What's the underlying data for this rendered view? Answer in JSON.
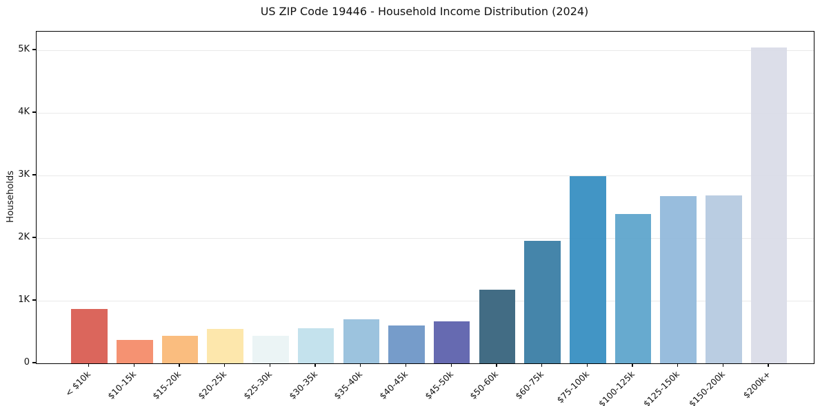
{
  "chart_data": {
    "type": "bar",
    "title": "US ZIP Code 19446 - Household Income Distribution (2024)",
    "xlabel": "",
    "ylabel": "Households",
    "categories": [
      "< $10k",
      "$10-15k",
      "$15-20k",
      "$20-25k",
      "$25-30k",
      "$30-35k",
      "$35-40k",
      "$40-45k",
      "$45-50k",
      "$50-60k",
      "$60-75k",
      "$75-100k",
      "$100-125k",
      "$125-150k",
      "$150-200k",
      "$200k+"
    ],
    "values": [
      870,
      375,
      440,
      550,
      445,
      560,
      700,
      605,
      675,
      1180,
      1960,
      2990,
      2390,
      2670,
      2685,
      5045
    ],
    "bar_colors": [
      "#d85a50",
      "#f48a67",
      "#fab875",
      "#fde5a6",
      "#e9f3f4",
      "#bfe0ec",
      "#94bedc",
      "#6c94c6",
      "#5a5fab",
      "#34617b",
      "#377ca4",
      "#348dc1",
      "#5ba4cb",
      "#90b8da",
      "#b5c9e0",
      "#d9dbe7"
    ],
    "ylim": [
      0,
      5297
    ],
    "yticks": [
      {
        "value": 0,
        "label": "0"
      },
      {
        "value": 1000,
        "label": "1K"
      },
      {
        "value": 2000,
        "label": "2K"
      },
      {
        "value": 3000,
        "label": "3K"
      },
      {
        "value": 4000,
        "label": "4K"
      },
      {
        "value": 5000,
        "label": "5K"
      }
    ],
    "grid": true,
    "legend": false,
    "background": "#ffffff",
    "grid_color": "#e9e9e9",
    "axis_color": "#000000",
    "text_color": "#111111"
  }
}
